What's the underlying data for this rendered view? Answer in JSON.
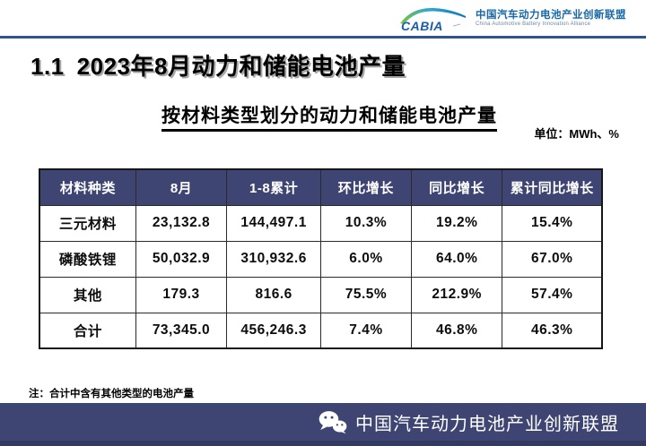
{
  "slide": {
    "logo": {
      "brand": "CABIA",
      "org_cn": "中国汽车动力电池产业创新联盟",
      "org_en": "China Automotive Battery Innovation Alliance"
    },
    "title_number": "1.1",
    "title_text": "2023年8月动力和储能电池产量",
    "subtitle": "按材料类型划分的动力和储能电池产量",
    "unit_label": "单位：MWh、%",
    "note": "注：合计中含有其他类型的电池产量",
    "footer_org": "中国汽车动力电池产业创新联盟"
  },
  "table": {
    "columns": [
      "材料种类",
      "8月",
      "1-8累计",
      "环比增长",
      "同比增长",
      "累计同比增长"
    ],
    "rows": [
      [
        "三元材料",
        "23,132.8",
        "144,497.1",
        "10.3%",
        "19.2%",
        "15.4%"
      ],
      [
        "磷酸铁锂",
        "50,032.9",
        "310,932.6",
        "6.0%",
        "64.0%",
        "67.0%"
      ],
      [
        "其他",
        "179.3",
        "816.6",
        "75.5%",
        "212.9%",
        "57.4%"
      ],
      [
        "合计",
        "73,345.0",
        "456,246.3",
        "7.4%",
        "46.8%",
        "46.3%"
      ]
    ]
  },
  "colors": {
    "table_header_navy": "#3e4573",
    "footer_navy": "#3e4573",
    "divider_blue": "#2f5496",
    "logo_text_blue": "#1b5ea8",
    "logo_swoosh_green": "#7dc242",
    "logo_swoosh_blue": "#0e76bc",
    "org_name_blue": "#1668a8"
  }
}
